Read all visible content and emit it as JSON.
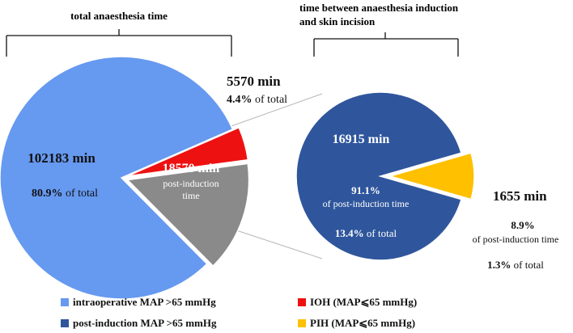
{
  "colors": {
    "intraop": "#6699f0",
    "ioh": "#ee1111",
    "post_induction": "#8a8a8a",
    "post_induction_map": "#2f569c",
    "pih": "#ffc000",
    "bracket": "#111111",
    "connector": "#b8b8b8"
  },
  "chart_data": [
    {
      "type": "pie",
      "title": "total anaesthesia time",
      "unit": "min",
      "slices": [
        {
          "name": "intraoperative MAP >65 mmHg",
          "value": 102183,
          "value_label": "102183 min",
          "pct_label": "80.9%",
          "pct_suffix": " of total",
          "color_key": "intraop"
        },
        {
          "name": "IOH (MAP⩽65 mmHg)",
          "value": 5570,
          "value_label": "5570 min",
          "pct_label": "4.4%",
          "pct_suffix": " of total",
          "color_key": "ioh",
          "exploded": true
        },
        {
          "name": "post-induction time",
          "value": 18570,
          "value_label": "18570 min",
          "sub_label_1": "post-induction",
          "sub_label_2": "time",
          "color_key": "post_induction",
          "exploded": true
        }
      ]
    },
    {
      "type": "pie",
      "title_line1": "time between anaesthesia induction",
      "title_line2": "and skin incision",
      "unit": "min",
      "slices": [
        {
          "name": "post-induction MAP >65 mmHg",
          "value": 16915,
          "value_label": "16915 min",
          "pct_label": "91.1%",
          "pct_sub": "of post-induction time",
          "total_pct_label": "13.4%",
          "total_pct_suffix": " of total",
          "color_key": "post_induction_map"
        },
        {
          "name": "PIH (MAP⩽65 mmHg)",
          "value": 1655,
          "value_label": "1655 min",
          "pct_label": "8.9%",
          "pct_sub": "of post-induction time",
          "total_pct_label": "1.3%",
          "total_pct_suffix": " of total",
          "color_key": "pih",
          "exploded": true
        }
      ]
    }
  ],
  "legend": [
    {
      "label": "intraoperative MAP >65 mmHg",
      "color_key": "intraop"
    },
    {
      "label": "IOH (MAP⩽65 mmHg)",
      "color_key": "ioh"
    },
    {
      "label": "post-induction MAP >65 mmHg",
      "color_key": "post_induction_map"
    },
    {
      "label": "PIH (MAP⩽65 mmHg)",
      "color_key": "pih"
    }
  ]
}
